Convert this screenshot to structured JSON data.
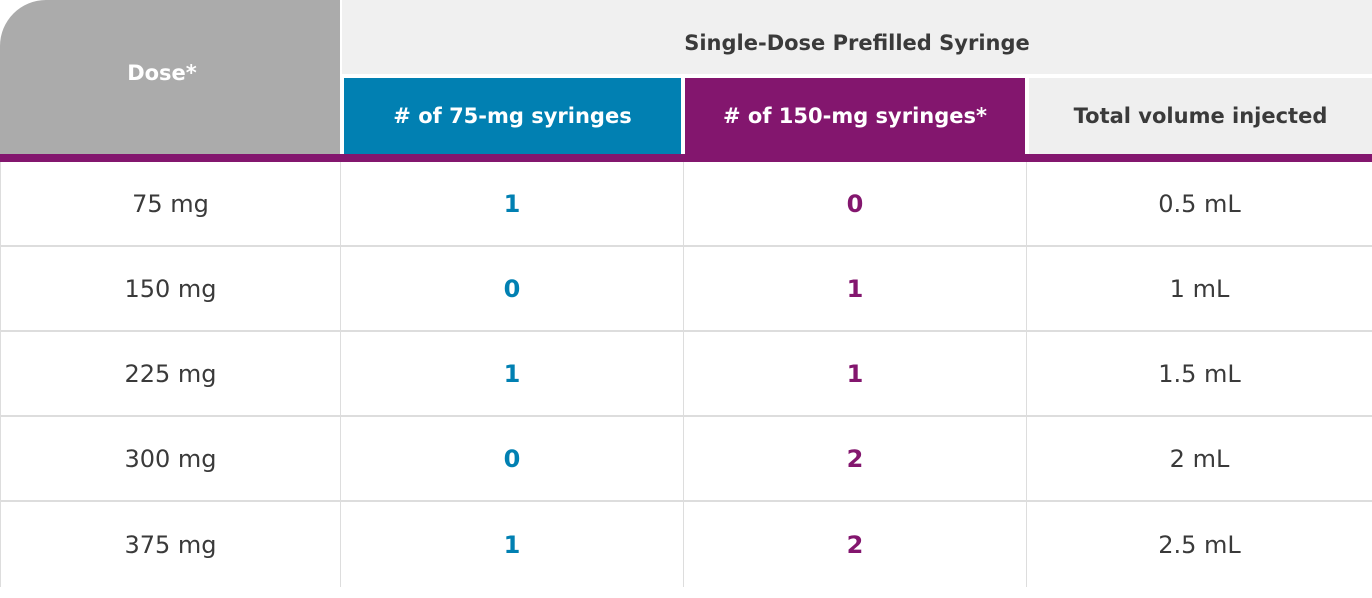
{
  "table": {
    "dose_header": "Dose*",
    "group_header": "Single-Dose Prefilled Syringe",
    "col_75_header": "# of 75-mg syringes",
    "col_150_header": "# of 150-mg syringes*",
    "col_volume_header": "Total volume injected",
    "rows": [
      {
        "dose": "75 mg",
        "n75": "1",
        "n150": "0",
        "volume": "0.5 mL"
      },
      {
        "dose": "150 mg",
        "n75": "0",
        "n150": "1",
        "volume": "1 mL"
      },
      {
        "dose": "225 mg",
        "n75": "1",
        "n150": "1",
        "volume": "1.5 mL"
      },
      {
        "dose": "300 mg",
        "n75": "0",
        "n150": "2",
        "volume": "2 mL"
      },
      {
        "dose": "375 mg",
        "n75": "1",
        "n150": "2",
        "volume": "2.5 mL"
      }
    ]
  },
  "colors": {
    "header_gray": "#ababab",
    "blue_accent": "#0180b2",
    "purple_accent": "#83166e",
    "light_header": "#efefef"
  }
}
